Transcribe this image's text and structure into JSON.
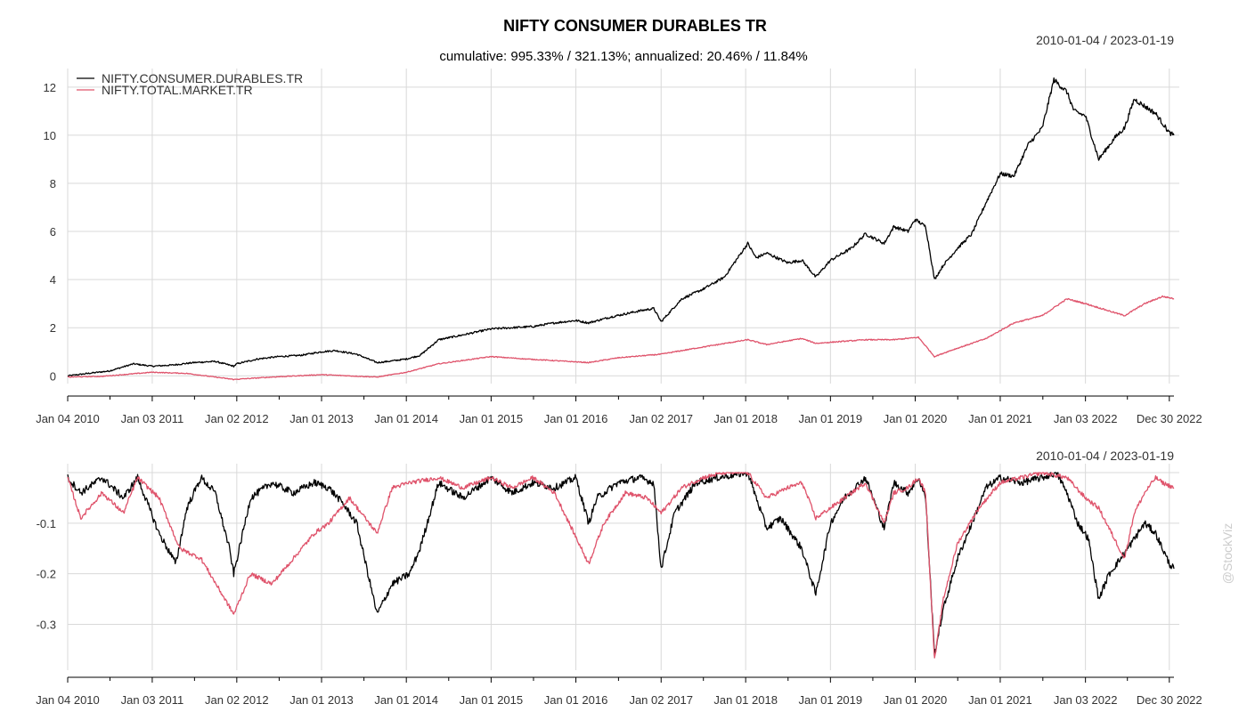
{
  "chart_data": [
    {
      "type": "line",
      "title": "NIFTY CONSUMER DURABLES TR",
      "subtitle": "cumulative: 995.33% / 321.13%; annualized: 20.46% / 11.84%",
      "date_range": "2010-01-04 / 2023-01-19",
      "legend_position": "top-left",
      "grid": true,
      "ylim": [
        -0.1,
        12.4
      ],
      "y_ticks": [
        "0",
        "2",
        "4",
        "6",
        "8",
        "10",
        "12"
      ],
      "x_ticks": [
        "Jan 04 2010",
        "Jan 03 2011",
        "Jan 02 2012",
        "Jan 01 2013",
        "Jan 01 2014",
        "Jan 01 2015",
        "Jan 01 2016",
        "Jan 02 2017",
        "Jan 01 2018",
        "Jan 01 2019",
        "Jan 01 2020",
        "Jan 01 2021",
        "Jan 03 2022",
        "Dec 30 2022"
      ],
      "x_range": [
        "2010-01-04",
        "2023-01-19"
      ],
      "series": [
        {
          "name": "NIFTY.CONSUMER.DURABLES.TR",
          "color": "#000000",
          "x": [
            "2010-01-04",
            "2010-04-01",
            "2010-07-01",
            "2010-10-15",
            "2011-01-03",
            "2011-04-01",
            "2011-07-01",
            "2011-10-01",
            "2011-12-20",
            "2012-01-02",
            "2012-04-01",
            "2012-07-01",
            "2012-10-01",
            "2013-01-01",
            "2013-03-01",
            "2013-06-01",
            "2013-08-28",
            "2013-10-15",
            "2014-01-01",
            "2014-03-01",
            "2014-05-20",
            "2014-09-01",
            "2015-01-01",
            "2015-04-01",
            "2015-07-01",
            "2015-10-01",
            "2016-01-01",
            "2016-02-25",
            "2016-06-01",
            "2016-10-01",
            "2016-12-01",
            "2017-01-02",
            "2017-04-01",
            "2017-07-01",
            "2017-10-01",
            "2018-01-10",
            "2018-02-15",
            "2018-04-01",
            "2018-07-01",
            "2018-09-01",
            "2018-10-30",
            "2019-01-01",
            "2019-04-01",
            "2019-06-01",
            "2019-08-20",
            "2019-10-01",
            "2019-12-01",
            "2020-01-01",
            "2020-02-15",
            "2020-03-24",
            "2020-05-01",
            "2020-07-01",
            "2020-09-01",
            "2020-11-01",
            "2021-01-01",
            "2021-03-01",
            "2021-05-01",
            "2021-07-01",
            "2021-08-20",
            "2021-10-15",
            "2021-11-15",
            "2022-01-03",
            "2022-03-01",
            "2022-05-10",
            "2022-06-20",
            "2022-08-01",
            "2022-09-15",
            "2022-11-01",
            "2022-12-30",
            "2023-01-19"
          ],
          "y": [
            0.0,
            0.1,
            0.2,
            0.5,
            0.4,
            0.45,
            0.55,
            0.6,
            0.4,
            0.5,
            0.7,
            0.8,
            0.85,
            1.0,
            1.05,
            0.9,
            0.55,
            0.6,
            0.7,
            0.85,
            1.5,
            1.7,
            1.95,
            2.0,
            2.05,
            2.2,
            2.3,
            2.2,
            2.45,
            2.7,
            2.8,
            2.25,
            3.2,
            3.6,
            4.1,
            5.5,
            4.9,
            5.1,
            4.7,
            4.8,
            4.1,
            4.8,
            5.3,
            5.9,
            5.5,
            6.2,
            6.0,
            6.5,
            6.2,
            4.0,
            4.6,
            5.3,
            5.9,
            7.2,
            8.4,
            8.3,
            9.6,
            10.3,
            12.3,
            11.8,
            11.0,
            10.8,
            9.0,
            9.9,
            10.3,
            11.5,
            11.2,
            10.9,
            10.1,
            10.0
          ]
        },
        {
          "name": "NIFTY.TOTAL.MARKET.TR",
          "color": "#df536b",
          "x": [
            "2010-01-04",
            "2010-06-01",
            "2011-01-03",
            "2011-06-01",
            "2011-12-20",
            "2012-06-01",
            "2013-01-01",
            "2013-08-28",
            "2014-01-01",
            "2014-05-20",
            "2015-01-01",
            "2015-06-01",
            "2016-02-25",
            "2016-07-01",
            "2017-01-02",
            "2017-06-01",
            "2018-01-10",
            "2018-04-01",
            "2018-08-30",
            "2018-10-30",
            "2019-06-01",
            "2019-10-01",
            "2020-01-15",
            "2020-03-24",
            "2020-06-01",
            "2020-11-01",
            "2021-03-01",
            "2021-07-01",
            "2021-10-15",
            "2022-01-03",
            "2022-06-20",
            "2022-09-15",
            "2022-12-01",
            "2023-01-19"
          ],
          "y": [
            -0.05,
            -0.02,
            0.15,
            0.1,
            -0.15,
            -0.05,
            0.05,
            -0.05,
            0.15,
            0.5,
            0.8,
            0.7,
            0.55,
            0.75,
            0.9,
            1.15,
            1.5,
            1.3,
            1.55,
            1.35,
            1.5,
            1.5,
            1.6,
            0.8,
            1.05,
            1.55,
            2.2,
            2.5,
            3.2,
            3.0,
            2.5,
            3.0,
            3.3,
            3.21
          ]
        }
      ]
    },
    {
      "type": "line",
      "title": "",
      "date_range": "2010-01-04 / 2023-01-19",
      "grid": true,
      "ylim": [
        -0.38,
        0.0
      ],
      "y_ticks": [
        "-0.1",
        "-0.2",
        "-0.3"
      ],
      "x_ticks": [
        "Jan 04 2010",
        "Jan 03 2011",
        "Jan 02 2012",
        "Jan 01 2013",
        "Jan 01 2014",
        "Jan 01 2015",
        "Jan 01 2016",
        "Jan 02 2017",
        "Jan 01 2018",
        "Jan 01 2019",
        "Jan 01 2020",
        "Jan 01 2021",
        "Jan 03 2022",
        "Dec 30 2022"
      ],
      "x_range": [
        "2010-01-04",
        "2023-01-19"
      ],
      "series": [
        {
          "name": "NIFTY.CONSUMER.DURABLES.TR",
          "color": "#000000",
          "x": [
            "2010-01-04",
            "2010-03-01",
            "2010-06-01",
            "2010-09-01",
            "2010-11-01",
            "2011-02-01",
            "2011-04-15",
            "2011-06-01",
            "2011-08-01",
            "2011-10-01",
            "2011-12-01",
            "2011-12-20",
            "2012-03-01",
            "2012-06-01",
            "2012-09-01",
            "2012-12-01",
            "2013-02-01",
            "2013-04-01",
            "2013-06-01",
            "2013-08-28",
            "2013-11-01",
            "2014-01-15",
            "2014-03-01",
            "2014-05-20",
            "2014-09-01",
            "2015-01-01",
            "2015-04-01",
            "2015-07-01",
            "2015-10-01",
            "2016-01-01",
            "2016-02-25",
            "2016-04-01",
            "2016-07-01",
            "2016-10-01",
            "2016-12-01",
            "2017-01-02",
            "2017-03-01",
            "2017-06-01",
            "2017-09-01",
            "2018-01-10",
            "2018-04-01",
            "2018-06-01",
            "2018-08-30",
            "2018-10-30",
            "2019-01-01",
            "2019-03-01",
            "2019-06-01",
            "2019-08-20",
            "2019-10-01",
            "2019-12-01",
            "2020-01-15",
            "2020-02-15",
            "2020-03-24",
            "2020-05-01",
            "2020-07-01",
            "2020-09-01",
            "2020-11-01",
            "2021-01-01",
            "2021-04-01",
            "2021-07-01",
            "2021-09-01",
            "2021-10-15",
            "2021-12-01",
            "2022-01-15",
            "2022-03-01",
            "2022-04-15",
            "2022-06-20",
            "2022-09-15",
            "2022-11-01",
            "2022-12-30",
            "2023-01-19"
          ],
          "y": [
            -0.01,
            -0.04,
            -0.01,
            -0.05,
            -0.01,
            -0.12,
            -0.18,
            -0.07,
            -0.01,
            -0.04,
            -0.15,
            -0.2,
            -0.05,
            -0.02,
            -0.04,
            -0.02,
            -0.03,
            -0.06,
            -0.1,
            -0.28,
            -0.22,
            -0.2,
            -0.15,
            -0.02,
            -0.05,
            -0.01,
            -0.04,
            -0.02,
            -0.03,
            -0.01,
            -0.1,
            -0.05,
            -0.02,
            -0.01,
            -0.02,
            -0.19,
            -0.08,
            -0.02,
            -0.01,
            0.0,
            -0.11,
            -0.09,
            -0.15,
            -0.24,
            -0.1,
            -0.05,
            -0.01,
            -0.11,
            -0.02,
            -0.04,
            -0.01,
            -0.05,
            -0.36,
            -0.27,
            -0.17,
            -0.1,
            -0.03,
            -0.01,
            -0.02,
            -0.01,
            0.0,
            -0.04,
            -0.1,
            -0.13,
            -0.25,
            -0.2,
            -0.16,
            -0.1,
            -0.12,
            -0.18,
            -0.19
          ]
        },
        {
          "name": "NIFTY.TOTAL.MARKET.TR",
          "color": "#df536b",
          "x": [
            "2010-01-04",
            "2010-03-01",
            "2010-06-01",
            "2010-09-01",
            "2010-11-01",
            "2011-02-01",
            "2011-05-01",
            "2011-08-01",
            "2011-12-20",
            "2012-03-01",
            "2012-06-01",
            "2012-09-01",
            "2012-12-01",
            "2013-02-01",
            "2013-05-01",
            "2013-08-28",
            "2013-11-01",
            "2014-01-15",
            "2014-05-20",
            "2014-09-01",
            "2015-01-01",
            "2015-04-01",
            "2015-07-01",
            "2015-10-01",
            "2016-02-25",
            "2016-05-01",
            "2016-08-01",
            "2016-11-01",
            "2017-01-02",
            "2017-04-01",
            "2017-07-01",
            "2017-10-01",
            "2018-01-10",
            "2018-04-01",
            "2018-07-01",
            "2018-09-01",
            "2018-10-30",
            "2019-02-01",
            "2019-06-01",
            "2019-08-20",
            "2019-10-01",
            "2019-12-01",
            "2020-01-15",
            "2020-02-15",
            "2020-03-24",
            "2020-05-01",
            "2020-07-01",
            "2020-10-01",
            "2021-01-01",
            "2021-04-01",
            "2021-07-01",
            "2021-10-15",
            "2022-01-03",
            "2022-03-01",
            "2022-06-20",
            "2022-08-01",
            "2022-09-15",
            "2022-11-01",
            "2022-12-01",
            "2023-01-19"
          ],
          "y": [
            -0.01,
            -0.09,
            -0.04,
            -0.08,
            -0.01,
            -0.05,
            -0.15,
            -0.17,
            -0.28,
            -0.2,
            -0.22,
            -0.17,
            -0.12,
            -0.1,
            -0.05,
            -0.12,
            -0.03,
            -0.02,
            -0.01,
            -0.03,
            -0.01,
            -0.03,
            -0.01,
            -0.04,
            -0.18,
            -0.1,
            -0.04,
            -0.05,
            -0.08,
            -0.03,
            -0.01,
            0.0,
            0.0,
            -0.05,
            -0.03,
            -0.02,
            -0.09,
            -0.06,
            -0.02,
            -0.1,
            -0.04,
            -0.03,
            -0.01,
            -0.04,
            -0.37,
            -0.25,
            -0.14,
            -0.07,
            -0.02,
            -0.01,
            0.0,
            -0.01,
            -0.05,
            -0.07,
            -0.17,
            -0.08,
            -0.04,
            -0.01,
            -0.02,
            -0.03
          ]
        }
      ]
    }
  ],
  "watermark": "@StockViz"
}
